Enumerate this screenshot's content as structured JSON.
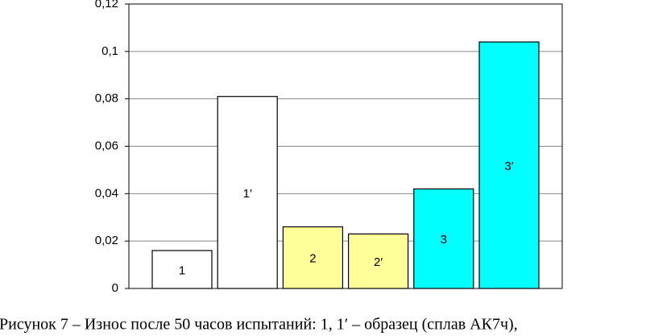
{
  "chart_data": {
    "type": "bar",
    "caption": "Рисунок 7 – Износ после 50 часов испытаний: 1, 1′ – образец (сплав АК7ч),",
    "categories": [
      "1",
      "1′",
      "2",
      "2′",
      "3",
      "3′"
    ],
    "values": [
      0.016,
      0.081,
      0.026,
      0.023,
      0.042,
      0.104
    ],
    "colors": [
      "#ffffff",
      "#ffffff",
      "#ffff99",
      "#ffff99",
      "#00ffff",
      "#00ffff"
    ],
    "ylim": [
      0,
      0.12
    ],
    "yticks": [
      0,
      {
        "value": 0.02,
        "label": "0,02"
      },
      {
        "value": 0.04,
        "label": "0,04"
      },
      {
        "value": 0.06,
        "label": "0,06"
      },
      {
        "value": 0.08,
        "label": "0,08"
      },
      {
        "value": 0.1,
        "label": "0,1"
      },
      {
        "value": 0.12,
        "label": "0,12"
      }
    ],
    "grid": true
  }
}
